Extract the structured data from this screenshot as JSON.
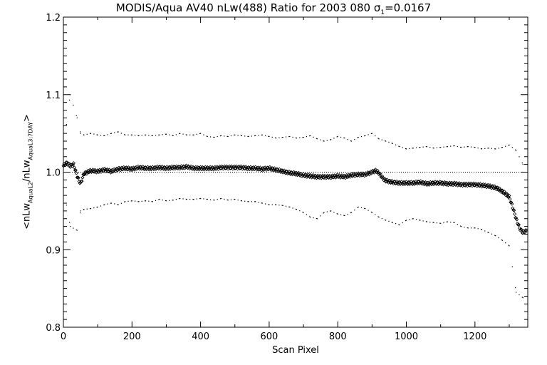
{
  "chart_data": {
    "type": "scatter",
    "title_main": "MODIS/Aqua AV40 nLw(488) Ratio for 2003 080 ",
    "title_sigma": "σ",
    "title_sigma_sub": "1",
    "title_sigma_value": "=0.0167",
    "xlabel": "Scan Pixel",
    "ylabel_parts": {
      "open": "<nLw",
      "sub1": "AquaL2",
      "mid": "/nLw",
      "sub2": "AquaL3:7DAY",
      "close": ">"
    },
    "xlim": [
      0,
      1354
    ],
    "ylim": [
      0.8,
      1.2
    ],
    "xticks": [
      0,
      200,
      400,
      600,
      800,
      1000,
      1200
    ],
    "xtick_labels": [
      "0",
      "200",
      "400",
      "600",
      "800",
      "1000",
      "1200"
    ],
    "yticks": [
      0.8,
      0.9,
      1.0,
      1.1,
      1.2
    ],
    "ytick_labels": [
      "0.8",
      "0.9",
      "1.0",
      "1.1",
      "1.2"
    ],
    "reference_line": 1.0,
    "series": [
      {
        "marker": "diamond",
        "x": [
          0,
          10,
          20,
          30,
          40,
          50,
          60,
          80,
          100,
          120,
          140,
          160,
          180,
          200,
          220,
          240,
          260,
          280,
          300,
          320,
          340,
          360,
          380,
          400,
          420,
          440,
          460,
          480,
          500,
          520,
          540,
          560,
          580,
          600,
          620,
          640,
          660,
          680,
          700,
          720,
          740,
          760,
          780,
          800,
          820,
          840,
          860,
          880,
          900,
          910,
          920,
          930,
          940,
          960,
          980,
          1000,
          1020,
          1040,
          1060,
          1080,
          1100,
          1120,
          1140,
          1160,
          1180,
          1200,
          1220,
          1240,
          1260,
          1270,
          1280,
          1290,
          1300,
          1310,
          1320,
          1330,
          1340,
          1350
        ],
        "y": [
          1.008,
          1.012,
          1.008,
          1.01,
          0.995,
          0.985,
          0.998,
          1.002,
          1.001,
          1.003,
          1.001,
          1.004,
          1.005,
          1.004,
          1.006,
          1.005,
          1.005,
          1.006,
          1.005,
          1.006,
          1.006,
          1.007,
          1.005,
          1.005,
          1.005,
          1.005,
          1.006,
          1.006,
          1.006,
          1.006,
          1.005,
          1.005,
          1.004,
          1.005,
          1.003,
          1.001,
          0.999,
          0.998,
          0.996,
          0.995,
          0.994,
          0.994,
          0.994,
          0.995,
          0.994,
          0.996,
          0.997,
          0.997,
          1.0,
          1.002,
          0.999,
          0.993,
          0.989,
          0.987,
          0.986,
          0.986,
          0.986,
          0.987,
          0.985,
          0.986,
          0.986,
          0.985,
          0.985,
          0.984,
          0.984,
          0.984,
          0.983,
          0.982,
          0.98,
          0.978,
          0.975,
          0.972,
          0.968,
          0.955,
          0.94,
          0.928,
          0.922,
          0.925
        ]
      },
      {
        "marker": "dot",
        "x": [
          0,
          20,
          40,
          50,
          60,
          80,
          100,
          120,
          140,
          160,
          180,
          200,
          220,
          240,
          260,
          280,
          300,
          320,
          340,
          360,
          380,
          400,
          420,
          440,
          460,
          480,
          500,
          520,
          540,
          560,
          580,
          600,
          620,
          640,
          660,
          680,
          700,
          720,
          740,
          760,
          780,
          800,
          820,
          840,
          860,
          880,
          900,
          920,
          940,
          960,
          980,
          1000,
          1020,
          1040,
          1060,
          1080,
          1100,
          1120,
          1140,
          1160,
          1180,
          1200,
          1220,
          1240,
          1260,
          1280,
          1300,
          1320,
          1340
        ],
        "y": [
          1.03,
          1.1,
          1.07,
          1.05,
          1.048,
          1.05,
          1.048,
          1.047,
          1.05,
          1.052,
          1.048,
          1.048,
          1.047,
          1.048,
          1.047,
          1.048,
          1.049,
          1.047,
          1.05,
          1.048,
          1.048,
          1.05,
          1.046,
          1.045,
          1.047,
          1.046,
          1.048,
          1.047,
          1.046,
          1.047,
          1.048,
          1.046,
          1.044,
          1.045,
          1.046,
          1.044,
          1.045,
          1.047,
          1.043,
          1.04,
          1.042,
          1.046,
          1.044,
          1.04,
          1.045,
          1.047,
          1.05,
          1.043,
          1.04,
          1.037,
          1.033,
          1.03,
          1.031,
          1.032,
          1.033,
          1.031,
          1.032,
          1.033,
          1.034,
          1.032,
          1.033,
          1.032,
          1.03,
          1.031,
          1.03,
          1.032,
          1.035,
          1.028,
          1.01
        ]
      },
      {
        "marker": "dot",
        "x": [
          0,
          20,
          40,
          50,
          60,
          80,
          100,
          120,
          140,
          160,
          180,
          200,
          220,
          240,
          260,
          280,
          300,
          320,
          340,
          360,
          380,
          400,
          420,
          440,
          460,
          480,
          500,
          520,
          540,
          560,
          580,
          600,
          620,
          640,
          660,
          680,
          700,
          720,
          740,
          760,
          780,
          800,
          820,
          840,
          860,
          880,
          900,
          920,
          940,
          960,
          980,
          1000,
          1020,
          1040,
          1060,
          1080,
          1100,
          1120,
          1140,
          1160,
          1180,
          1200,
          1220,
          1240,
          1260,
          1280,
          1300,
          1320,
          1340
        ],
        "y": [
          0.98,
          0.93,
          0.925,
          0.95,
          0.952,
          0.953,
          0.955,
          0.958,
          0.96,
          0.958,
          0.962,
          0.963,
          0.962,
          0.963,
          0.962,
          0.965,
          0.963,
          0.964,
          0.966,
          0.965,
          0.965,
          0.966,
          0.965,
          0.964,
          0.966,
          0.964,
          0.965,
          0.963,
          0.962,
          0.962,
          0.96,
          0.958,
          0.958,
          0.957,
          0.955,
          0.952,
          0.948,
          0.942,
          0.94,
          0.948,
          0.95,
          0.946,
          0.944,
          0.948,
          0.955,
          0.953,
          0.948,
          0.942,
          0.938,
          0.935,
          0.932,
          0.938,
          0.94,
          0.938,
          0.936,
          0.935,
          0.934,
          0.936,
          0.935,
          0.93,
          0.928,
          0.928,
          0.926,
          0.922,
          0.918,
          0.912,
          0.905,
          0.845,
          0.838
        ]
      }
    ]
  }
}
